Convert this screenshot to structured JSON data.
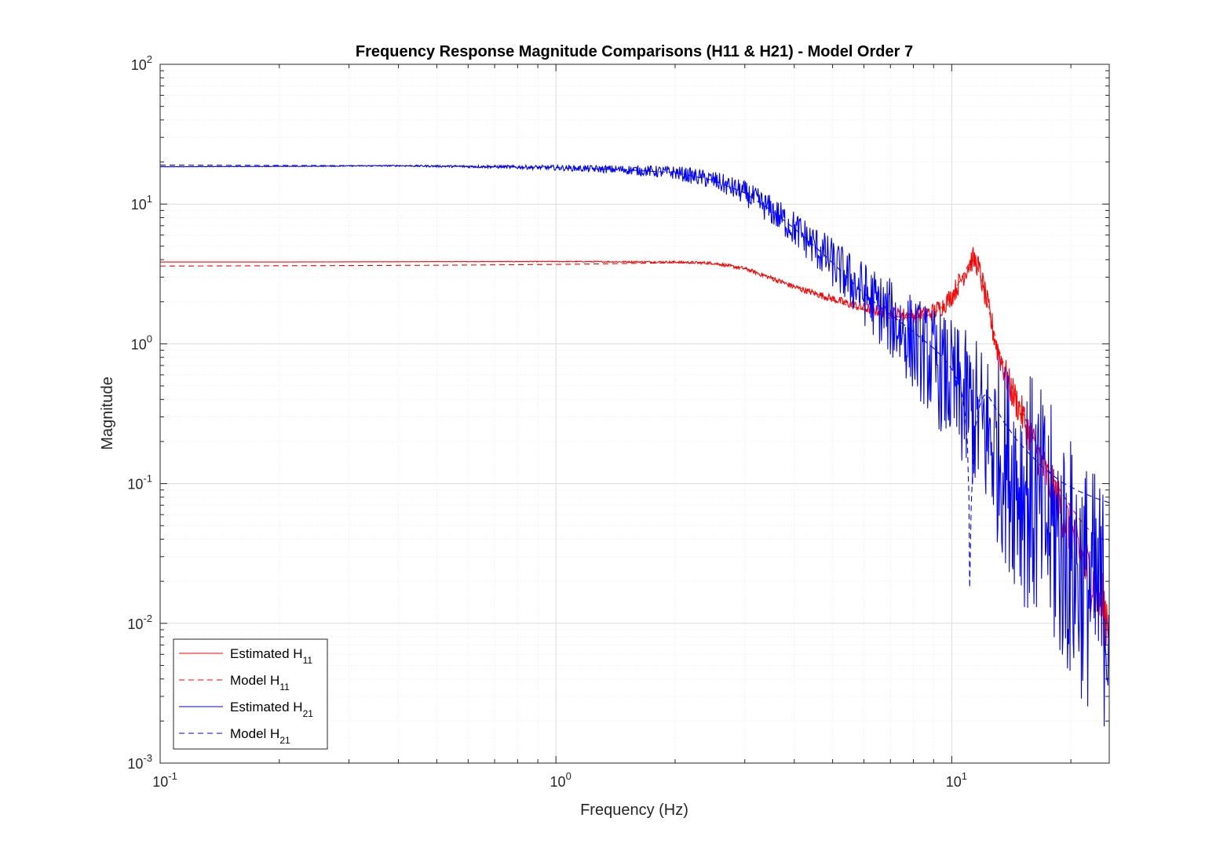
{
  "chart_data": {
    "type": "line",
    "title": "Frequency Response Magnitude Comparisons (H11 & H21) - Model Order 7",
    "xlabel": "Frequency (Hz)",
    "ylabel": "Magnitude",
    "xscale": "log",
    "yscale": "log",
    "xlim": [
      0.1,
      25
    ],
    "ylim": [
      0.001,
      100
    ],
    "x_tick_labels": [
      {
        "base": "10",
        "exp": "-1",
        "value": 0.1
      },
      {
        "base": "10",
        "exp": "0",
        "value": 1
      },
      {
        "base": "10",
        "exp": "1",
        "value": 10
      }
    ],
    "y_tick_labels": [
      {
        "base": "10",
        "exp": "-3",
        "value": 0.001
      },
      {
        "base": "10",
        "exp": "-2",
        "value": 0.01
      },
      {
        "base": "10",
        "exp": "-1",
        "value": 0.1
      },
      {
        "base": "10",
        "exp": "0",
        "value": 1
      },
      {
        "base": "10",
        "exp": "1",
        "value": 10
      },
      {
        "base": "10",
        "exp": "2",
        "value": 100
      }
    ],
    "grid": true,
    "minor_grid": true,
    "legend_position": "bottom-left",
    "series": [
      {
        "label_main": "Estimated H",
        "label_sub": "11",
        "color": "#ff0000",
        "dash": "solid",
        "noise": 0.008,
        "x": [
          0.1,
          0.2,
          0.5,
          1.0,
          2.0,
          2.5,
          3.0,
          3.5,
          4.0,
          4.5,
          5.0,
          5.5,
          6.0,
          6.5,
          7.0,
          7.5,
          8.0,
          8.5,
          9.0,
          9.5,
          10.0,
          10.5,
          11.0,
          11.3,
          11.6,
          12.0,
          12.5,
          13.0,
          14.0,
          15.0,
          16.0,
          17.0,
          18.0,
          19.0,
          20.0,
          21.0,
          22.0,
          23.0,
          24.0,
          25.0
        ],
        "y": [
          3.85,
          3.85,
          3.87,
          3.88,
          3.85,
          3.78,
          3.45,
          2.95,
          2.55,
          2.3,
          2.1,
          1.93,
          1.81,
          1.72,
          1.66,
          1.62,
          1.6,
          1.62,
          1.7,
          1.88,
          2.2,
          2.8,
          3.6,
          4.05,
          3.75,
          2.6,
          1.55,
          0.95,
          0.5,
          0.32,
          0.2,
          0.13,
          0.09,
          0.063,
          0.045,
          0.032,
          0.024,
          0.018,
          0.013,
          0.011
        ]
      },
      {
        "label_main": "Model H",
        "label_sub": "11",
        "color": "#ff0000",
        "dash": "dashed",
        "noise": 0,
        "x": [
          0.1,
          0.2,
          0.5,
          1.0,
          2.0,
          2.5,
          3.0,
          3.5,
          4.0,
          4.5,
          5.0,
          5.5,
          6.0,
          6.5,
          7.0,
          7.5,
          8.0,
          8.5,
          9.0,
          9.5,
          10.0,
          10.5,
          11.0,
          11.3,
          11.6,
          12.0,
          12.5,
          13.0,
          14.0,
          15.0,
          16.0,
          17.0,
          18.0,
          19.0,
          20.0,
          21.0,
          22.0,
          23.0,
          24.0,
          25.0
        ],
        "y": [
          3.6,
          3.62,
          3.65,
          3.7,
          3.8,
          3.75,
          3.48,
          3.0,
          2.6,
          2.3,
          2.05,
          1.87,
          1.75,
          1.65,
          1.59,
          1.55,
          1.54,
          1.56,
          1.65,
          1.85,
          2.2,
          2.85,
          3.65,
          3.95,
          3.6,
          2.6,
          1.6,
          1.0,
          0.54,
          0.34,
          0.22,
          0.15,
          0.11,
          0.085,
          0.068,
          0.056,
          0.048,
          0.043,
          0.04,
          0.039
        ]
      },
      {
        "label_main": "Estimated H",
        "label_sub": "21",
        "color": "#0000ff",
        "dash": "solid",
        "noise": 0.05,
        "x": [
          0.1,
          0.2,
          0.4,
          0.7,
          1.0,
          1.5,
          2.0,
          2.5,
          3.0,
          3.5,
          4.0,
          4.5,
          5.0,
          5.5,
          6.0,
          6.5,
          7.0,
          7.5,
          8.0,
          8.5,
          9.0,
          9.5,
          10.0,
          10.5,
          11.0,
          11.5,
          12.0,
          13.0,
          14.0,
          15.0,
          16.0,
          17.0,
          18.0,
          19.0,
          20.0,
          21.0,
          22.0,
          23.0,
          24.0,
          25.0
        ],
        "y": [
          18.5,
          18.6,
          18.8,
          18.5,
          18.2,
          17.6,
          16.8,
          14.8,
          12.0,
          9.0,
          6.7,
          5.0,
          3.8,
          2.9,
          2.3,
          1.85,
          1.52,
          1.25,
          1.02,
          0.85,
          0.72,
          0.6,
          0.5,
          0.41,
          0.35,
          0.3,
          0.25,
          0.18,
          0.13,
          0.1,
          0.078,
          0.058,
          0.045,
          0.035,
          0.028,
          0.023,
          0.019,
          0.016,
          0.014,
          0.013
        ]
      },
      {
        "label_main": "Model H",
        "label_sub": "21",
        "color": "#0000ff",
        "dash": "dashed",
        "noise": 0,
        "x": [
          0.1,
          0.2,
          0.4,
          0.7,
          1.0,
          1.5,
          2.0,
          2.5,
          3.0,
          3.5,
          4.0,
          4.5,
          5.0,
          5.5,
          6.0,
          6.5,
          7.0,
          7.5,
          8.0,
          8.5,
          9.0,
          9.5,
          10.0,
          10.3,
          10.6,
          10.8,
          10.95,
          11.05,
          11.1,
          11.2,
          11.35,
          11.5,
          11.7,
          11.9,
          12.1,
          12.4,
          12.8,
          13.5,
          14.5,
          15.5,
          17.0,
          19.0,
          21.0,
          23.0,
          25.0
        ],
        "y": [
          19.0,
          18.9,
          18.8,
          18.5,
          18.2,
          17.6,
          16.8,
          14.8,
          12.0,
          9.0,
          6.7,
          5.0,
          3.8,
          2.9,
          2.3,
          1.9,
          1.62,
          1.4,
          1.22,
          1.06,
          0.93,
          0.8,
          0.66,
          0.56,
          0.44,
          0.32,
          0.2,
          0.08,
          0.018,
          0.07,
          0.17,
          0.26,
          0.34,
          0.4,
          0.43,
          0.42,
          0.36,
          0.28,
          0.21,
          0.17,
          0.13,
          0.102,
          0.088,
          0.079,
          0.073
        ]
      }
    ]
  }
}
